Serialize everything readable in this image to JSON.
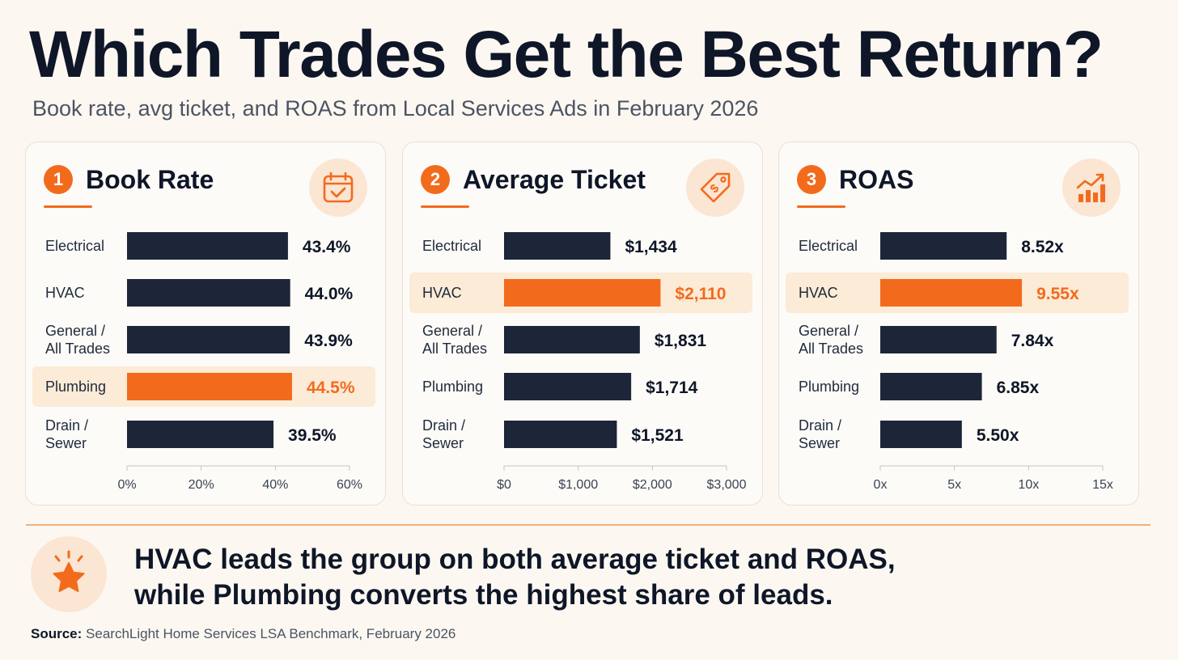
{
  "header": {
    "title": "Which Trades Get the Best Return?",
    "subtitle": "Book rate, avg ticket, and ROAS from Local Services Ads in February 2026"
  },
  "colors": {
    "bar": "#1c2638",
    "highlight_bar": "#f26b1d",
    "highlight_bg": "#fcebd6",
    "accent": "#f26b1d"
  },
  "chart_data": [
    {
      "type": "bar",
      "orientation": "horizontal",
      "number": "1",
      "title": "Book Rate",
      "icon": "calendar-check-icon",
      "categories": [
        "Electrical",
        "HVAC",
        "General / All Trades",
        "Plumbing",
        "Drain / Sewer"
      ],
      "values": [
        43.4,
        44.0,
        43.9,
        44.5,
        39.5
      ],
      "value_labels": [
        "43.4%",
        "44.0%",
        "43.9%",
        "44.5%",
        "39.5%"
      ],
      "highlight": "Plumbing",
      "xlim": [
        0,
        60
      ],
      "ticks": [
        0,
        20,
        40,
        60
      ],
      "tick_labels": [
        "0%",
        "20%",
        "40%",
        "60%"
      ],
      "grid": false
    },
    {
      "type": "bar",
      "orientation": "horizontal",
      "number": "2",
      "title": "Average Ticket",
      "icon": "price-tag-icon",
      "categories": [
        "Electrical",
        "HVAC",
        "General / All Trades",
        "Plumbing",
        "Drain / Sewer"
      ],
      "values": [
        1434,
        2110,
        1831,
        1714,
        1521
      ],
      "value_labels": [
        "$1,434",
        "$2,110",
        "$1,831",
        "$1,714",
        "$1,521"
      ],
      "highlight": "HVAC",
      "xlim": [
        0,
        3000
      ],
      "ticks": [
        0,
        1000,
        2000,
        3000
      ],
      "tick_labels": [
        "$0",
        "$1,000",
        "$2,000",
        "$3,000"
      ],
      "grid": false
    },
    {
      "type": "bar",
      "orientation": "horizontal",
      "number": "3",
      "title": "ROAS",
      "icon": "growth-chart-icon",
      "categories": [
        "Electrical",
        "HVAC",
        "General / All Trades",
        "Plumbing",
        "Drain / Sewer"
      ],
      "values": [
        8.52,
        9.55,
        7.84,
        6.85,
        5.5
      ],
      "value_labels": [
        "8.52x",
        "9.55x",
        "7.84x",
        "6.85x",
        "5.50x"
      ],
      "highlight": "HVAC",
      "xlim": [
        0,
        15
      ],
      "ticks": [
        0,
        5,
        10,
        15
      ],
      "tick_labels": [
        "0x",
        "5x",
        "10x",
        "15x"
      ],
      "grid": false
    }
  ],
  "takeaway": {
    "icon": "star-icon",
    "line1": "HVAC leads the group on both average ticket and ROAS,",
    "line2": "while Plumbing converts the highest share of leads."
  },
  "source": {
    "label": "Source:",
    "text": "SearchLight Home Services LSA Benchmark, February 2026"
  }
}
